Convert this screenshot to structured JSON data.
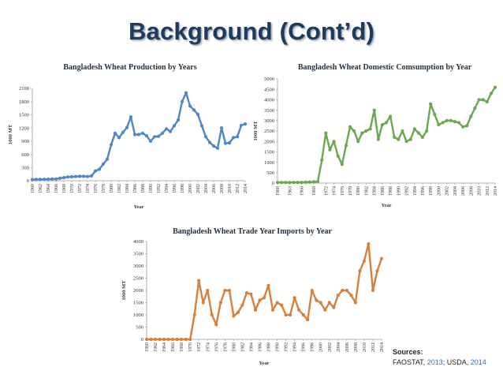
{
  "slide": {
    "title": "Background (Cont’d)"
  },
  "sources": {
    "heading": "Sources:",
    "org1": "FAOSTAT, ",
    "year1": "2013",
    "sep": "; USDA, ",
    "year2": "2014"
  },
  "colors": {
    "production": "#4f86c6",
    "consumption": "#6aa84f",
    "imports": "#d7803c"
  },
  "chart_data": [
    {
      "id": "production",
      "type": "line",
      "title": "Bangladesh Wheat Production by Years",
      "xlabel": "Year",
      "ylabel": "1000 MT",
      "ylim": [
        0,
        2100
      ],
      "yticks": [
        0,
        300,
        600,
        900,
        1200,
        1500,
        1800,
        2100
      ],
      "x": [
        1960,
        1961,
        1962,
        1963,
        1964,
        1965,
        1966,
        1967,
        1968,
        1969,
        1970,
        1971,
        1972,
        1973,
        1974,
        1975,
        1976,
        1977,
        1978,
        1979,
        1980,
        1981,
        1982,
        1983,
        1984,
        1985,
        1986,
        1987,
        1988,
        1989,
        1990,
        1991,
        1992,
        1993,
        1994,
        1995,
        1996,
        1997,
        1998,
        1999,
        2000,
        2001,
        2002,
        2003,
        2004,
        2005,
        2006,
        2007,
        2008,
        2009,
        2010,
        2011,
        2012,
        2013,
        2014
      ],
      "values": [
        25,
        28,
        30,
        32,
        35,
        38,
        40,
        55,
        70,
        85,
        90,
        95,
        100,
        100,
        95,
        110,
        220,
        260,
        380,
        490,
        820,
        1080,
        980,
        1100,
        1210,
        1450,
        1050,
        1050,
        1080,
        1020,
        900,
        1000,
        1010,
        1080,
        1180,
        1120,
        1250,
        1380,
        1800,
        2000,
        1700,
        1610,
        1510,
        1250,
        1000,
        870,
        790,
        740,
        1200,
        850,
        860,
        980,
        1000,
        1260,
        1290
      ],
      "xticks": [
        "1960",
        "1962",
        "1964",
        "1966",
        "1968",
        "1970",
        "1972",
        "1974",
        "1976",
        "1978",
        "1980",
        "1982",
        "1984",
        "1986",
        "1988",
        "1990",
        "1992",
        "1994",
        "1996",
        "1998",
        "2000",
        "2002",
        "2004",
        "2006",
        "2008",
        "2010",
        "2012",
        "2014"
      ]
    },
    {
      "id": "consumption",
      "type": "line",
      "title": "Bangladesh Wheat Domestic Comsumption by Year",
      "xlabel": "Year",
      "ylabel": "1000 MT",
      "ylim": [
        0,
        5000
      ],
      "yticks": [
        0,
        500,
        1000,
        1500,
        2000,
        2500,
        3000,
        3500,
        4000,
        4500,
        5000
      ],
      "x": [
        1960,
        1961,
        1962,
        1963,
        1964,
        1965,
        1966,
        1967,
        1968,
        1969,
        1970,
        1971,
        1972,
        1973,
        1974,
        1975,
        1976,
        1977,
        1978,
        1979,
        1980,
        1981,
        1982,
        1983,
        1984,
        1985,
        1986,
        1987,
        1988,
        1989,
        1990,
        1991,
        1992,
        1993,
        1994,
        1995,
        1996,
        1997,
        1998,
        1999,
        2000,
        2001,
        2002,
        2003,
        2004,
        2005,
        2006,
        2007,
        2008,
        2009,
        2010,
        2011,
        2012,
        2013,
        2014
      ],
      "values": [
        30,
        30,
        30,
        30,
        30,
        30,
        30,
        40,
        50,
        60,
        70,
        1100,
        2400,
        1600,
        2000,
        1300,
        900,
        1800,
        2700,
        2500,
        2000,
        2400,
        2500,
        2600,
        3500,
        2100,
        2800,
        2900,
        3200,
        2200,
        2100,
        2500,
        2000,
        2100,
        2600,
        2400,
        2200,
        2500,
        3800,
        3300,
        2800,
        2900,
        3000,
        3000,
        2950,
        2900,
        2700,
        2750,
        3200,
        3600,
        4000,
        4000,
        3900,
        4300,
        4600
      ],
      "xticks": [
        "1960",
        "1963",
        "1966",
        "1969",
        "1972",
        "1974",
        "1976",
        "1978",
        "1980",
        "1982",
        "1984",
        "1986",
        "1988",
        "1990",
        "1992",
        "1994",
        "1996",
        "1998",
        "2000",
        "2002",
        "2004",
        "2006",
        "2008",
        "2010",
        "2012",
        "2014"
      ]
    },
    {
      "id": "imports",
      "type": "line",
      "title": "Bangladesh Wheat Trade Year Imports by Year",
      "xlabel": "Year",
      "ylabel": "1000 MT",
      "ylim": [
        0,
        4000
      ],
      "yticks": [
        0,
        500,
        1000,
        1500,
        2000,
        2500,
        3000,
        3500,
        4000
      ],
      "x": [
        1960,
        1961,
        1962,
        1963,
        1964,
        1965,
        1966,
        1967,
        1968,
        1969,
        1970,
        1971,
        1972,
        1973,
        1974,
        1975,
        1976,
        1977,
        1978,
        1979,
        1980,
        1981,
        1982,
        1983,
        1984,
        1985,
        1986,
        1987,
        1988,
        1989,
        1990,
        1991,
        1992,
        1993,
        1994,
        1995,
        1996,
        1997,
        1998,
        1999,
        2000,
        2001,
        2002,
        2003,
        2004,
        2005,
        2006,
        2007,
        2008,
        2009,
        2010,
        2011,
        2012,
        2013,
        2014
      ],
      "values": [
        0,
        0,
        0,
        0,
        0,
        0,
        0,
        0,
        0,
        0,
        0,
        1000,
        2400,
        1500,
        2000,
        1000,
        600,
        1500,
        2000,
        2000,
        950,
        1100,
        1400,
        1900,
        1850,
        1200,
        1600,
        1700,
        2200,
        1200,
        1500,
        1400,
        1000,
        1000,
        1700,
        1200,
        1000,
        800,
        2000,
        1600,
        1500,
        1200,
        1500,
        1300,
        1800,
        2000,
        2000,
        1800,
        1500,
        2800,
        3200,
        3900,
        2000,
        2800,
        3300
      ],
      "xticks": [
        "1960",
        "1962",
        "1964",
        "1966",
        "1968",
        "1970",
        "1972",
        "1974",
        "1976",
        "1978",
        "1980",
        "1982",
        "1984",
        "1986",
        "1988",
        "1990",
        "1992",
        "1994",
        "1996",
        "1998",
        "2000",
        "2002",
        "2004",
        "2006",
        "2008",
        "2010",
        "2012",
        "2014"
      ]
    }
  ]
}
